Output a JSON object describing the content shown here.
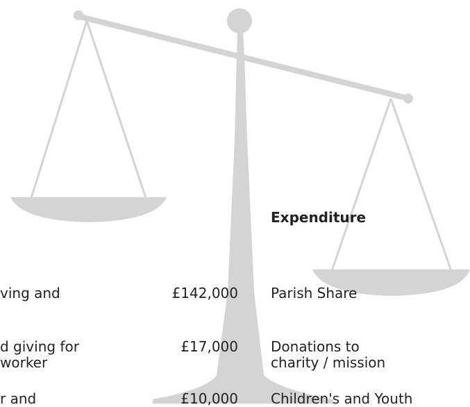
{
  "header": "Expenditure",
  "rows": [
    {
      "income": [
        "ving and"
      ],
      "amount": "£142,000",
      "expenditure": [
        "Parish Share"
      ]
    },
    {
      "income": [
        "d giving for",
        "worker"
      ],
      "amount": "£17,000",
      "expenditure": [
        "Donations to",
        "charity / mission"
      ]
    },
    {
      "income": [
        "r and"
      ],
      "amount": "£10,000",
      "expenditure": [
        "Children's and Youth"
      ]
    }
  ]
}
